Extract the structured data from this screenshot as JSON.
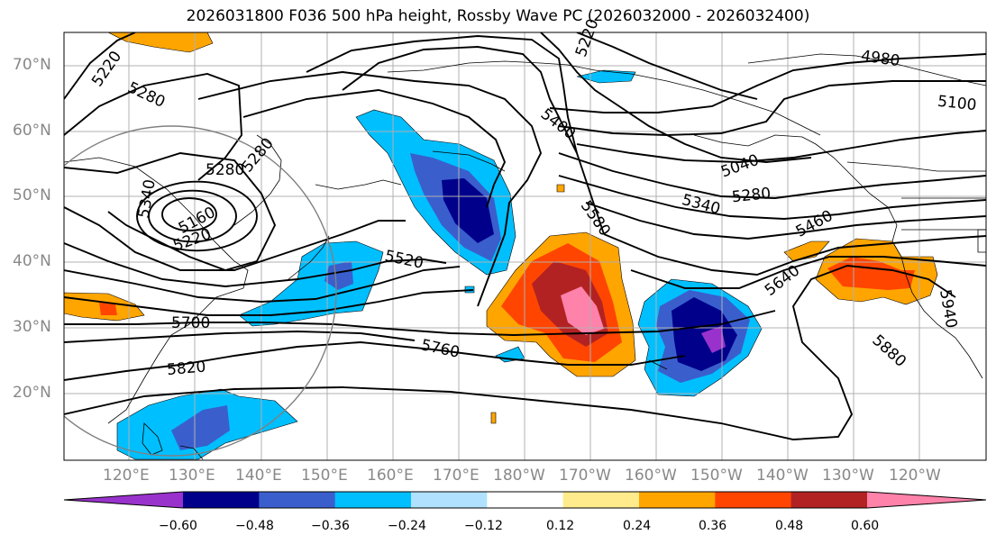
{
  "title": "2026031800 F036 500 hPa height, Rossby Wave PC (2026032000 - 2026032400)",
  "lat_labels": [
    "70°N",
    "60°N",
    "50°N",
    "40°N",
    "30°N",
    "20°N"
  ],
  "lon_labels": [
    "120°E",
    "130°E",
    "140°E",
    "150°E",
    "160°E",
    "170°E",
    "180°W",
    "170°W",
    "160°W",
    "150°W",
    "140°W",
    "130°W",
    "120°W"
  ],
  "contour_labels": [
    "5220",
    "5280",
    "5280",
    "5280",
    "5160",
    "5220",
    "5340",
    "5700",
    "5820",
    "5760",
    "5520",
    "5580",
    "5400",
    "5220",
    "5040",
    "5280",
    "5340",
    "5460",
    "5640",
    "5880",
    "5940",
    "4980",
    "5100"
  ],
  "colorbar": {
    "ticks": [
      "−0.60",
      "−0.48",
      "−0.36",
      "−0.24",
      "−0.12",
      "0.12",
      "0.24",
      "0.36",
      "0.48",
      "0.60"
    ],
    "colors": [
      "#9932cc",
      "#00008b",
      "#3a5fcd",
      "#00bfff",
      "#b0e2ff",
      "#ffffff",
      "#ffeb8c",
      "#ffa500",
      "#ff4500",
      "#b22222",
      "#ff82ab"
    ]
  },
  "colors": {
    "axis_label": "#888888",
    "grid": "#b0b0b0",
    "contour": "#000000"
  }
}
